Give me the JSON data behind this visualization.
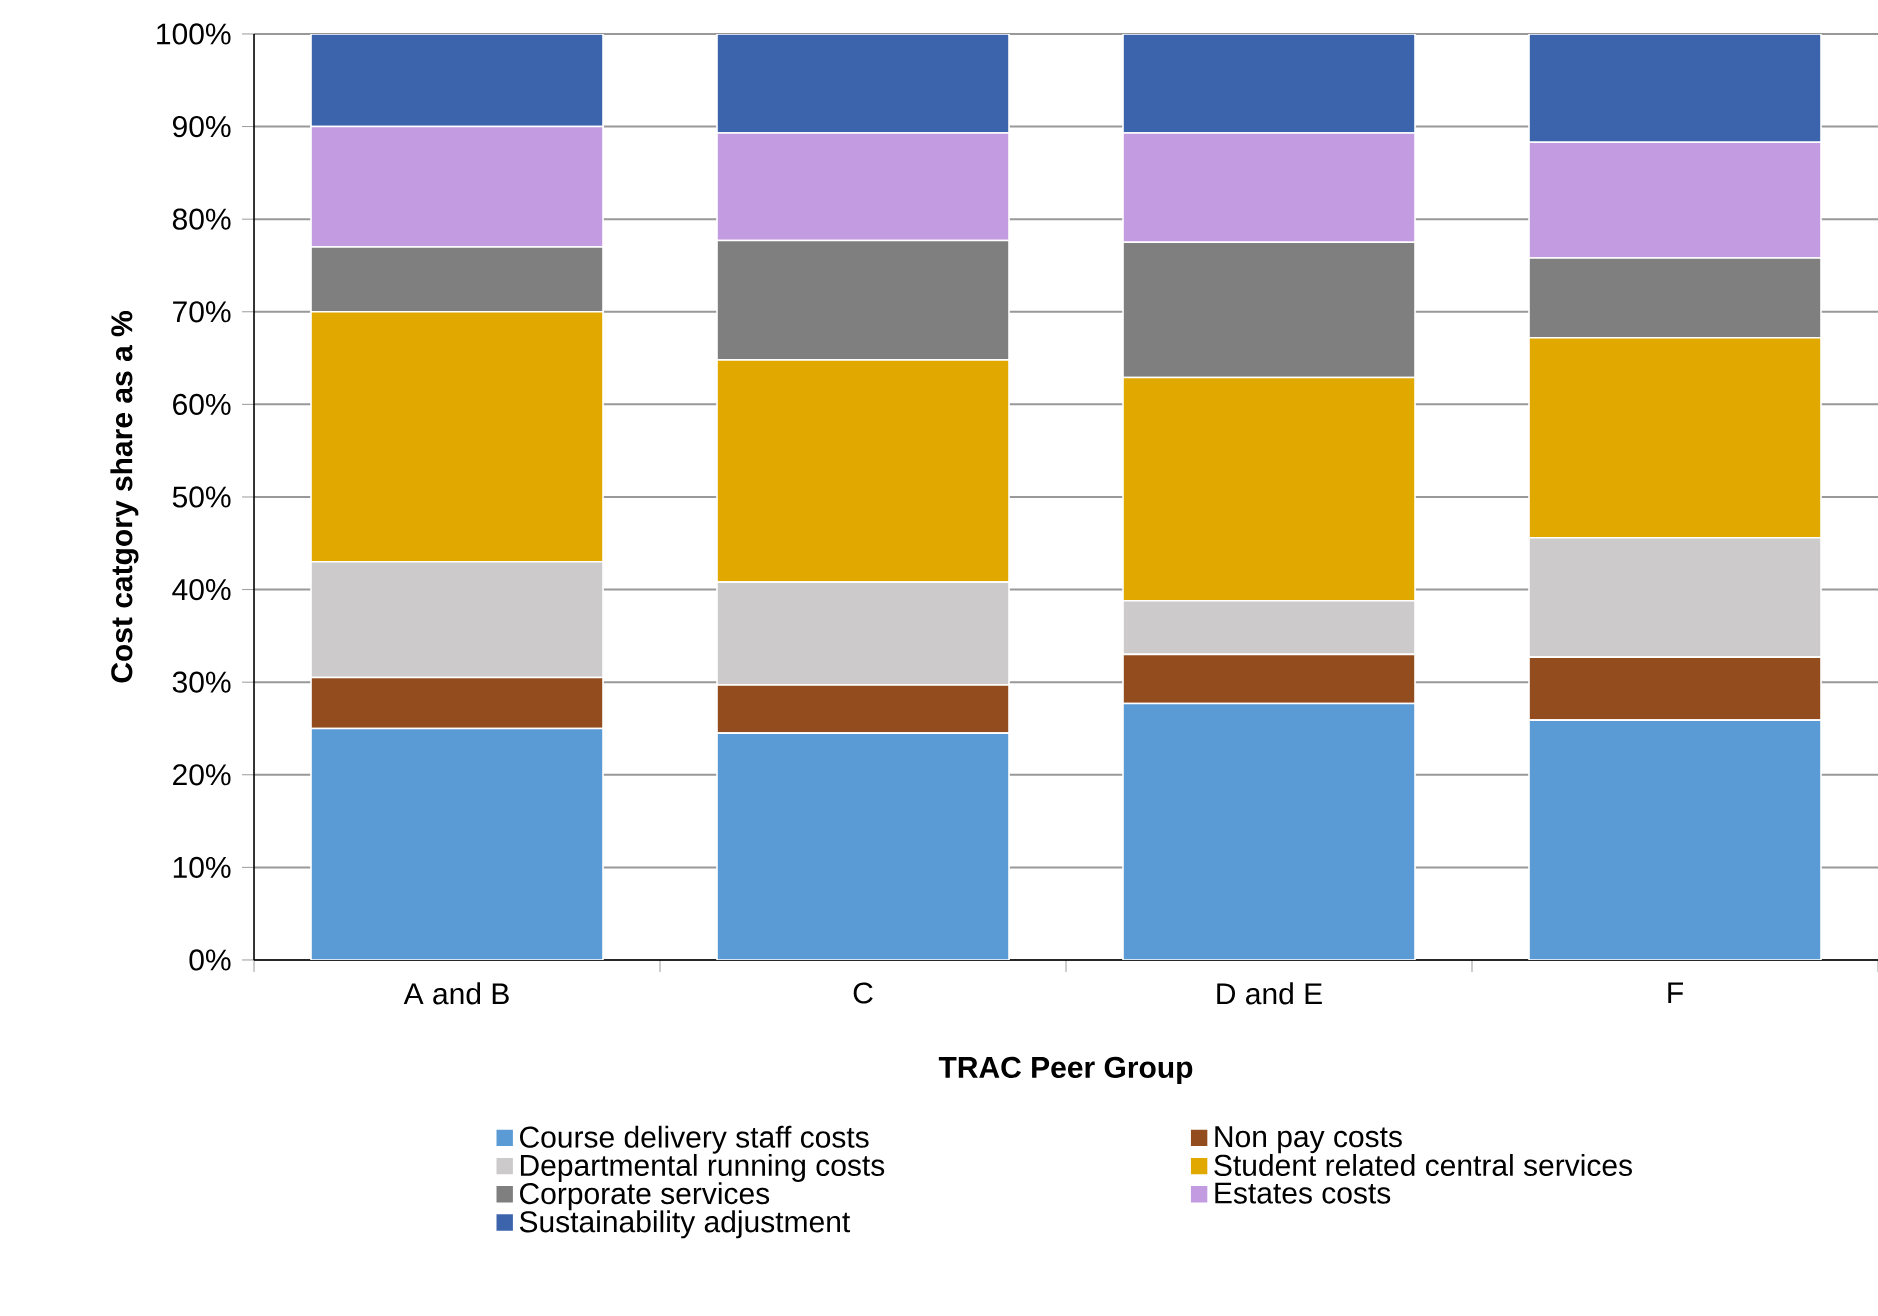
{
  "chart_data": {
    "type": "bar",
    "stacked": true,
    "xlabel": "TRAC Peer Group",
    "ylabel": "Cost catgory share as a %",
    "categories": [
      "A and B",
      "C",
      "D and E",
      "F"
    ],
    "series": [
      {
        "name": "Course delivery staff costs",
        "color": "#5b9bd5",
        "values": [
          25,
          24.5,
          27.7,
          25.9
        ]
      },
      {
        "name": "Non pay costs",
        "color": "#934c1e",
        "values": [
          5.5,
          5.2,
          5.3,
          6.8
        ]
      },
      {
        "name": "Departmental running costs",
        "color": "#cccaca",
        "values": [
          12.5,
          11.1,
          5.8,
          12.9
        ]
      },
      {
        "name": "Student related central services",
        "color": "#e1a900",
        "values": [
          27,
          24,
          24.1,
          21.6
        ]
      },
      {
        "name": "Corporate services",
        "color": "#7f7f7f",
        "values": [
          7,
          12.9,
          14.6,
          8.6
        ]
      },
      {
        "name": "Estates costs",
        "color": "#c39be0",
        "values": [
          13,
          11.6,
          11.8,
          12.5
        ]
      },
      {
        "name": "Sustainability adjustment",
        "color": "#3c64ac",
        "values": [
          10,
          10.7,
          10.7,
          11.7
        ]
      }
    ],
    "ylim": [
      0,
      100
    ],
    "yticks": [
      {
        "value": 0,
        "label": "0%"
      },
      {
        "value": 10,
        "label": "10%"
      },
      {
        "value": 20,
        "label": "20%"
      },
      {
        "value": 30,
        "label": "30%"
      },
      {
        "value": 40,
        "label": "40%"
      },
      {
        "value": 50,
        "label": "50%"
      },
      {
        "value": 60,
        "label": "60%"
      },
      {
        "value": 70,
        "label": "70%"
      },
      {
        "value": 80,
        "label": "80%"
      },
      {
        "value": 90,
        "label": "90%"
      },
      {
        "value": 100,
        "label": "100%"
      }
    ],
    "grid": "y",
    "legend": "bottom"
  }
}
